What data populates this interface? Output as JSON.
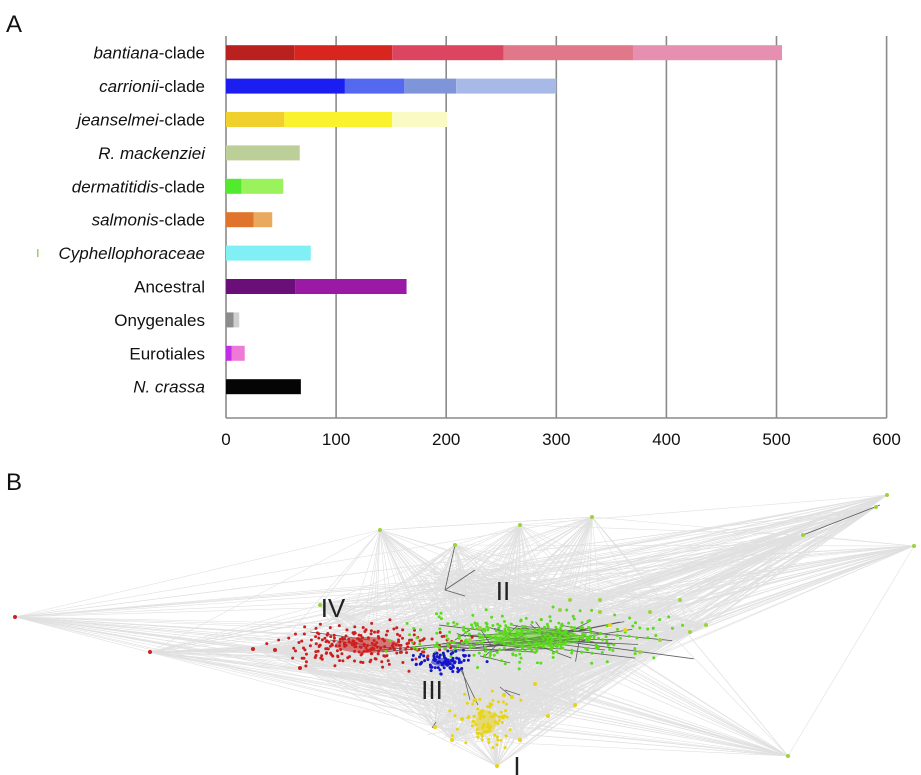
{
  "panels": {
    "a_label": "A",
    "b_label": "B"
  },
  "chart_data": [
    {
      "type": "bar",
      "stacked": true,
      "orientation": "horizontal",
      "xlim": [
        0,
        600
      ],
      "xticks": [
        "0",
        "100",
        "200",
        "300",
        "400",
        "500",
        "600"
      ],
      "grid": "vertical",
      "categories": [
        {
          "pre": "",
          "it": "bantiana",
          "post": "-clade",
          "segments": [
            62,
            89,
            101,
            118,
            135
          ],
          "colors": [
            "#b8211e",
            "#d8261e",
            "#dc4560",
            "#e0788a",
            "#e68fb0"
          ]
        },
        {
          "pre": "",
          "it": "carrionii",
          "post": "-clade",
          "segments": [
            108,
            54,
            47,
            91
          ],
          "colors": [
            "#1a1ef0",
            "#5468f0",
            "#7e95da",
            "#a7b9e6"
          ]
        },
        {
          "pre": "",
          "it": "jeanselmei",
          "post": "-clade",
          "segments": [
            53,
            98,
            50
          ],
          "colors": [
            "#f0d02c",
            "#fbf22e",
            "#fafbc4"
          ]
        },
        {
          "pre": "",
          "it": "R. mackenziei",
          "post": "",
          "segments": [
            67
          ],
          "colors": [
            "#bdcf99"
          ]
        },
        {
          "pre": "",
          "it": "dermatitidis",
          "post": "-clade",
          "segments": [
            14,
            38
          ],
          "colors": [
            "#52ea2c",
            "#9af25c"
          ]
        },
        {
          "pre": "",
          "it": "salmonis",
          "post": "-clade",
          "segments": [
            25,
            17
          ],
          "colors": [
            "#e0742c",
            "#e9a95e"
          ]
        },
        {
          "pre": "",
          "it": "Cyphellophoraceae",
          "post": "",
          "segments": [
            77
          ],
          "colors": [
            "#80f0f4"
          ]
        },
        {
          "pre": "Ancestral",
          "it": "",
          "post": "",
          "segments": [
            63,
            101
          ],
          "colors": [
            "#6a0e78",
            "#9a1aa6"
          ]
        },
        {
          "pre": "Onygenales",
          "it": "",
          "post": "",
          "segments": [
            7,
            5
          ],
          "colors": [
            "#8c8c8c",
            "#cfcfcf"
          ]
        },
        {
          "pre": "Eurotiales",
          "it": "",
          "post": "",
          "segments": [
            5,
            12
          ],
          "colors": [
            "#c22ee8",
            "#ee7ad8"
          ]
        },
        {
          "pre": "",
          "it": "N. crassa",
          "post": "",
          "segments": [
            68
          ],
          "colors": [
            "#050505"
          ]
        }
      ]
    },
    {
      "type": "network",
      "clusters": [
        {
          "name": "IV",
          "color": "#cc2020"
        },
        {
          "name": "II",
          "color": "#5bdc1a"
        },
        {
          "name": "III",
          "color": "#1414c8"
        },
        {
          "name": "I",
          "color": "#e8d414"
        }
      ],
      "background_node_color": "#9ed23c",
      "edge_color": "#d6d6d6"
    }
  ]
}
